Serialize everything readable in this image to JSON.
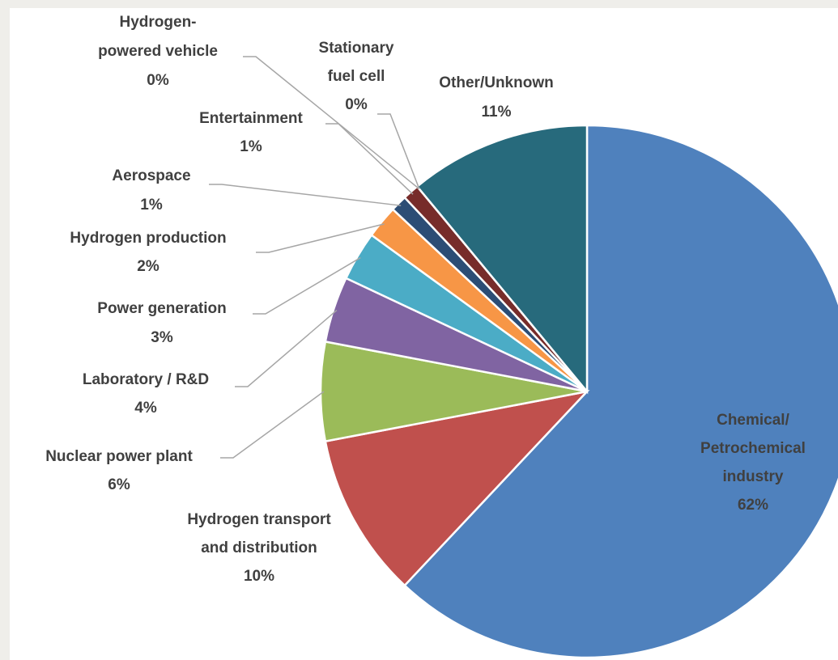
{
  "chart_data": {
    "type": "pie",
    "categories": [
      "Chemical/\nPetrochemical\nindustry",
      "Hydrogen transport\nand distribution",
      "Nuclear power plant",
      "Laboratory / R&D",
      "Power generation",
      "Hydrogen production",
      "Aerospace",
      "Entertainment",
      "Hydrogen-\npowered vehicle",
      "Stationary\nfuel cell",
      "Other/Unknown"
    ],
    "values": [
      62,
      10,
      6,
      4,
      3,
      2,
      1,
      1,
      0,
      0,
      11
    ],
    "value_labels": [
      "62%",
      "10%",
      "6%",
      "4%",
      "3%",
      "2%",
      "1%",
      "1%",
      "0%",
      "0%",
      "11%"
    ],
    "colors": [
      "#4f81bd",
      "#c0504d",
      "#9bbb59",
      "#8064a2",
      "#4bacc6",
      "#f79646",
      "#2c4d75",
      "#772c2a",
      "#5f7530",
      "#4d3b62",
      "#276a7c"
    ]
  }
}
